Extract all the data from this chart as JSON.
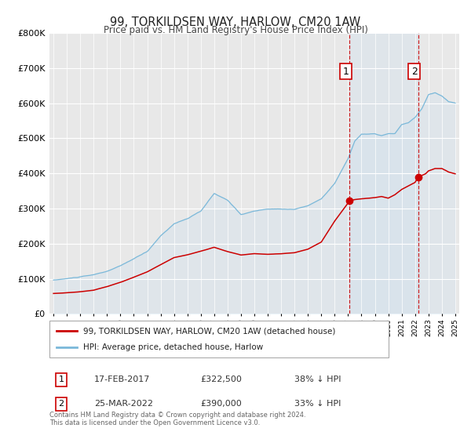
{
  "title": "99, TORKILDSEN WAY, HARLOW, CM20 1AW",
  "subtitle": "Price paid vs. HM Land Registry's House Price Index (HPI)",
  "legend_label_red": "99, TORKILDSEN WAY, HARLOW, CM20 1AW (detached house)",
  "legend_label_blue": "HPI: Average price, detached house, Harlow",
  "annotation1_date": "17-FEB-2017",
  "annotation1_price": "£322,500",
  "annotation1_hpi": "38% ↓ HPI",
  "annotation2_date": "25-MAR-2022",
  "annotation2_price": "£390,000",
  "annotation2_hpi": "33% ↓ HPI",
  "footer": "Contains HM Land Registry data © Crown copyright and database right 2024.\nThis data is licensed under the Open Government Licence v3.0.",
  "hpi_color": "#7ab8d9",
  "hpi_fill_color": "#c8dff0",
  "price_color": "#cc0000",
  "bg_color": "#e8e8e8",
  "grid_color": "#ffffff",
  "marker1_x": 2017.12,
  "marker1_y": 322500,
  "marker2_x": 2022.23,
  "marker2_y": 390000,
  "vline1_x": 2017.12,
  "vline2_x": 2022.23,
  "ylim": [
    0,
    800000
  ],
  "xlim": [
    1994.7,
    2025.3
  ]
}
